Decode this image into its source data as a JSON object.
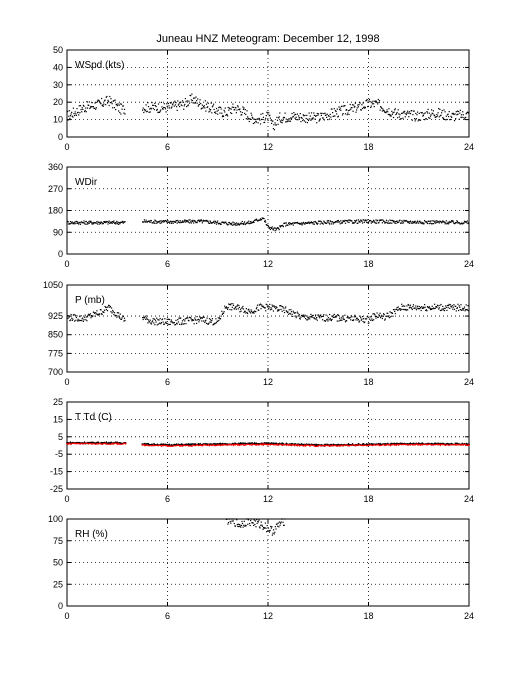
{
  "title": "Juneau HNZ Meteogram:  December 12, 1998",
  "colors": {
    "axis": "#000000",
    "grid": "#000000",
    "points": "#000000",
    "dewpoint": "#ff0000",
    "background": "#ffffff"
  },
  "chart_data": [
    {
      "type": "scatter",
      "name": "wspd",
      "label": "WSpd (kts)",
      "xlim": [
        0,
        24
      ],
      "ylim": [
        0,
        50
      ],
      "xticks": [
        0,
        6,
        12,
        18,
        24
      ],
      "yticks": [
        0,
        10,
        20,
        30,
        40,
        50
      ],
      "grid": true,
      "gaps": [
        [
          3.5,
          4.5
        ]
      ],
      "series": [
        {
          "color": "#000000",
          "points": [
            [
              0,
              12
            ],
            [
              1,
              17
            ],
            [
              2,
              19
            ],
            [
              2.5,
              21
            ],
            [
              3.2,
              16
            ],
            [
              4.5,
              17
            ],
            [
              6,
              17
            ],
            [
              7,
              19
            ],
            [
              7.5,
              22
            ],
            [
              8,
              19
            ],
            [
              9,
              15
            ],
            [
              9.5,
              14
            ],
            [
              10,
              17
            ],
            [
              10.5,
              15
            ],
            [
              11,
              11
            ],
            [
              11.5,
              10
            ],
            [
              12,
              12
            ],
            [
              12.3,
              6
            ],
            [
              12.7,
              11
            ],
            [
              13.5,
              12
            ],
            [
              14.5,
              11
            ],
            [
              15,
              11
            ],
            [
              16,
              14
            ],
            [
              17,
              16
            ],
            [
              18,
              19
            ],
            [
              18.5,
              19
            ],
            [
              19.5,
              14
            ],
            [
              20,
              13
            ],
            [
              21,
              12
            ],
            [
              22,
              14
            ],
            [
              23,
              12
            ],
            [
              24,
              13
            ]
          ]
        }
      ]
    },
    {
      "type": "scatter",
      "name": "wdir",
      "label": "WDir",
      "xlim": [
        0,
        24
      ],
      "ylim": [
        0,
        360
      ],
      "xticks": [
        0,
        6,
        12,
        18,
        24
      ],
      "yticks": [
        0,
        90,
        180,
        270,
        360
      ],
      "grid": true,
      "gaps": [
        [
          3.5,
          4.5
        ]
      ],
      "series": [
        {
          "color": "#000000",
          "points": [
            [
              0,
              130
            ],
            [
              3.5,
              130
            ],
            [
              4.5,
              135
            ],
            [
              6,
              133
            ],
            [
              8,
              135
            ],
            [
              10,
              125
            ],
            [
              11,
              130
            ],
            [
              11.7,
              150
            ],
            [
              12,
              112
            ],
            [
              12.5,
              100
            ],
            [
              13,
              123
            ],
            [
              15,
              130
            ],
            [
              18,
              135
            ],
            [
              20,
              133
            ],
            [
              24,
              130
            ]
          ]
        }
      ]
    },
    {
      "type": "scatter",
      "name": "pressure",
      "label": "P (mb)",
      "xlim": [
        0,
        24
      ],
      "ylim": [
        700,
        1050
      ],
      "xticks": [
        0,
        6,
        12,
        18,
        24
      ],
      "yticks": [
        700,
        775,
        850,
        925,
        1050
      ],
      "grid": true,
      "gaps": [
        [
          3.5,
          4.5
        ]
      ],
      "series": [
        {
          "color": "#000000",
          "points": [
            [
              0,
              920
            ],
            [
              1,
              915
            ],
            [
              2,
              940
            ],
            [
              2.5,
              960
            ],
            [
              3.5,
              905
            ],
            [
              4.5,
              920
            ],
            [
              5,
              905
            ],
            [
              6,
              900
            ],
            [
              7,
              905
            ],
            [
              8,
              910
            ],
            [
              9,
              900
            ],
            [
              9.5,
              965
            ],
            [
              10,
              960
            ],
            [
              11,
              945
            ],
            [
              11.5,
              960
            ],
            [
              12,
              960
            ],
            [
              13,
              950
            ],
            [
              13.5,
              935
            ],
            [
              14,
              920
            ],
            [
              15,
              918
            ],
            [
              16,
              918
            ],
            [
              17,
              915
            ],
            [
              18,
              910
            ],
            [
              18.5,
              930
            ],
            [
              19,
              920
            ],
            [
              20,
              960
            ],
            [
              22,
              960
            ],
            [
              24,
              958
            ]
          ]
        }
      ]
    },
    {
      "type": "line",
      "name": "temperature",
      "label": "T Td (C)",
      "xlim": [
        0,
        24
      ],
      "ylim": [
        -25,
        25
      ],
      "xticks": [
        0,
        6,
        12,
        18,
        24
      ],
      "yticks": [
        -25,
        -15,
        -5,
        5,
        15,
        25
      ],
      "ytick_labels": [
        "-25",
        "-15",
        "-5",
        "5",
        "15",
        "25"
      ],
      "grid": true,
      "gaps": [
        [
          3.5,
          4.5
        ]
      ],
      "series": [
        {
          "color": "#000000",
          "points": [
            [
              0,
              1.5
            ],
            [
              3.5,
              1.5
            ],
            [
              4.5,
              0.8
            ],
            [
              6,
              0.3
            ],
            [
              9,
              0.8
            ],
            [
              12,
              1.2
            ],
            [
              15,
              0.2
            ],
            [
              18,
              0.6
            ],
            [
              21,
              1.0
            ],
            [
              24,
              0.8
            ]
          ]
        },
        {
          "color": "#ff0000",
          "points": [
            [
              0,
              1.0
            ],
            [
              3.5,
              1.0
            ],
            [
              4.5,
              0.3
            ],
            [
              6,
              -0.2
            ],
            [
              9,
              0.3
            ],
            [
              12,
              0.6
            ],
            [
              15,
              -0.2
            ],
            [
              18,
              0.2
            ],
            [
              21,
              0.5
            ],
            [
              24,
              0.3
            ]
          ]
        }
      ]
    },
    {
      "type": "scatter",
      "name": "rh",
      "label": "RH (%)",
      "xlim": [
        0,
        24
      ],
      "ylim": [
        0,
        100
      ],
      "xticks": [
        0,
        6,
        12,
        18,
        24
      ],
      "yticks": [
        0,
        25,
        50,
        75,
        100
      ],
      "grid": true,
      "gaps": [],
      "series": [
        {
          "color": "#000000",
          "points": [
            [
              9.5,
              99
            ],
            [
              10,
              97
            ],
            [
              10.3,
              93
            ],
            [
              10.8,
              98
            ],
            [
              11.3,
              95
            ],
            [
              11.8,
              92
            ],
            [
              12,
              89
            ],
            [
              12.3,
              86
            ],
            [
              12.7,
              94
            ],
            [
              13,
              98
            ]
          ]
        }
      ]
    }
  ]
}
